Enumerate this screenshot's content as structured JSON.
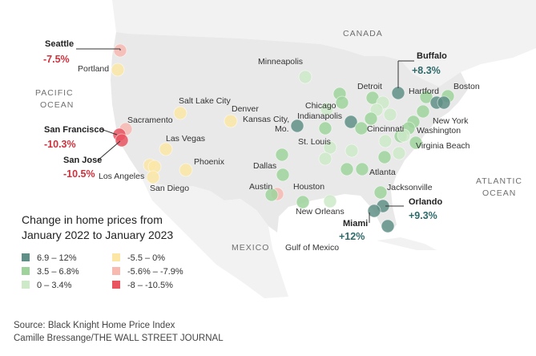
{
  "regions": {
    "canada": "CANADA",
    "mexico": "MEXICO",
    "pacific_1": "PACIFIC",
    "pacific_2": "OCEAN",
    "atlantic_1": "ATLANTIC",
    "atlantic_2": "OCEAN",
    "gulf": "Gulf of Mexico"
  },
  "colors": {
    "c1": "#5f8f86",
    "c2": "#9fd39c",
    "c3": "#cde9c8",
    "c4": "#fbe6a6",
    "c5": "#f7b9b0",
    "c6": "#e85460"
  },
  "legend": {
    "title_line1": "Change in home prices from",
    "title_line2": "January 2022 to January 2023",
    "items": [
      {
        "label": "6.9 – 12%",
        "color": "c1"
      },
      {
        "label": "3.5 – 6.8%",
        "color": "c2"
      },
      {
        "label": "0 – 3.4%",
        "color": "c3"
      },
      {
        "label": "-5.5 – 0%",
        "color": "c4"
      },
      {
        "label": "-5.6% – -7.9%",
        "color": "c5"
      },
      {
        "label": "-8 – -10.5%",
        "color": "c6"
      }
    ]
  },
  "highlights": [
    {
      "city": "Seattle",
      "value": "-7.5%"
    },
    {
      "city": "San Francisco",
      "value": "-10.3%"
    },
    {
      "city": "San Jose",
      "value": "-10.5%"
    },
    {
      "city": "Buffalo",
      "value": "+8.3%"
    },
    {
      "city": "Orlando",
      "value": "+9.3%"
    },
    {
      "city": "Miami",
      "value": "+12%"
    }
  ],
  "city_labels": {
    "portland": "Portland",
    "sacramento": "Sacramento",
    "salt_lake_city": "Salt Lake City",
    "denver": "Denver",
    "las_vegas": "Las Vegas",
    "los_angeles": "Los Angeles",
    "san_diego": "San Diego",
    "phoenix": "Phoenix",
    "minneapolis": "Minneapolis",
    "kansas_city_1": "Kansas City,",
    "kansas_city_2": "Mo.",
    "chicago": "Chicago",
    "indianapolis": "Indianapolis",
    "detroit": "Detroit",
    "st_louis": "St. Louis",
    "cincinnati": "Cincinnati",
    "dallas": "Dallas",
    "austin": "Austin",
    "houston": "Houston",
    "new_orleans": "New Orleans",
    "atlanta": "Atlanta",
    "jacksonville": "Jacksonville",
    "hartford": "Hartford",
    "boston": "Boston",
    "new_york": "New York",
    "washington": "Washington",
    "virginia_beach": "Virginia Beach"
  },
  "source_line1": "Source: Black Knight Home Price Index",
  "source_line2": "Camille Bressange/THE WALL STREET JOURNAL"
}
